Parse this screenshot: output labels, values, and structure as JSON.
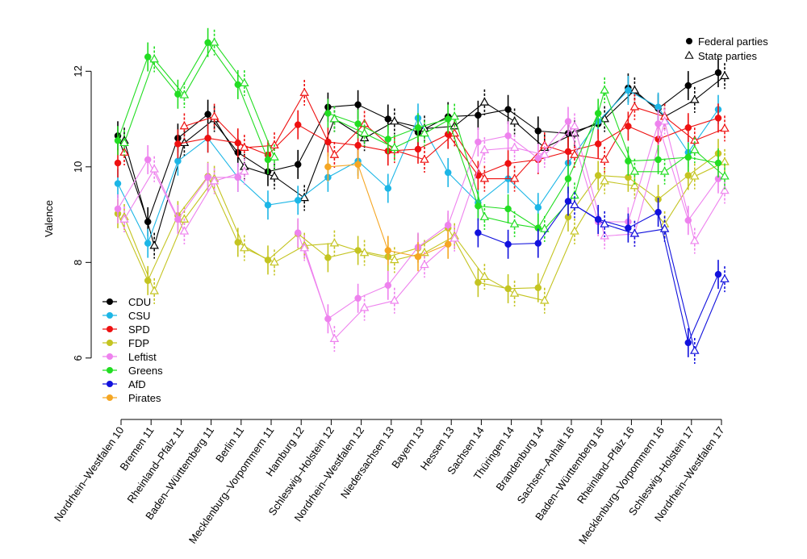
{
  "chart_data": {
    "type": "line",
    "ylabel": "Valence",
    "ylim": [
      4.9,
      12.9
    ],
    "yticks": [
      6,
      8,
      10,
      12
    ],
    "categories": [
      "Nordrhein–Westfalen 10",
      "Bremen 11",
      "Rheinland–Pfalz 11",
      "Baden–Württemberg 11",
      "Berlin 11",
      "Mecklenburg–Vorpommern 11",
      "Hamburg 12",
      "Schleswig–Holstein 12",
      "Nordrhein–Westfalen 12",
      "Niedersachsen 13",
      "Bayern 13",
      "Hessen 13",
      "Sachsen 14",
      "Thüringen 14",
      "Brandenburg 14",
      "Sachsen–Anhalt 16",
      "Baden–Württemberg 16",
      "Rheinland–Pfalz 16",
      "Mecklenburg–Vorpommern 16",
      "Schleswig–Holstein 17",
      "Nordrhein–Westfalen 17"
    ],
    "legend": {
      "marker_types": [
        {
          "label": "Federal parties",
          "marker": "filled-circle"
        },
        {
          "label": "State parties",
          "marker": "open-triangle"
        }
      ],
      "placement": "top-right"
    },
    "series": [
      {
        "name": "CDU",
        "color": "#000000",
        "federal": [
          10.65,
          8.85,
          10.6,
          11.1,
          10.3,
          9.9,
          10.05,
          11.25,
          11.3,
          11.0,
          10.72,
          11.05,
          11.08,
          11.2,
          10.75,
          10.7,
          10.9,
          11.65,
          11.22,
          11.7,
          11.97
        ],
        "state": [
          10.55,
          8.35,
          10.5,
          11.0,
          10.0,
          9.8,
          9.35,
          11.0,
          10.6,
          10.95,
          10.8,
          10.85,
          11.35,
          10.95,
          10.4,
          10.7,
          11.0,
          11.6,
          11.05,
          11.4,
          11.9
        ]
      },
      {
        "name": "CSU",
        "color": "#1cb6e6",
        "federal": [
          9.65,
          8.4,
          10.12,
          10.6,
          9.78,
          9.2,
          9.3,
          9.78,
          10.12,
          9.55,
          11.02,
          9.88,
          9.25,
          9.75,
          9.15,
          10.08,
          10.95,
          11.6,
          11.25,
          10.3,
          11.2
        ]
      },
      {
        "name": "SPD",
        "color": "#ee1111",
        "federal": [
          10.08,
          null,
          10.48,
          10.6,
          10.5,
          10.25,
          10.88,
          10.52,
          10.45,
          10.33,
          10.37,
          10.68,
          9.82,
          10.07,
          10.15,
          10.32,
          10.48,
          10.85,
          10.58,
          10.82,
          11.02
        ],
        "state": [
          10.3,
          null,
          10.85,
          11.05,
          10.4,
          10.45,
          11.55,
          10.25,
          10.9,
          10.35,
          10.15,
          10.7,
          9.75,
          9.75,
          10.45,
          10.25,
          10.15,
          11.25,
          11.05,
          10.55,
          10.8
        ]
      },
      {
        "name": "FDP",
        "color": "#c4c421",
        "federal": [
          9.02,
          7.62,
          8.98,
          9.8,
          8.42,
          8.05,
          8.6,
          8.1,
          8.25,
          8.12,
          8.3,
          8.72,
          7.58,
          7.45,
          7.47,
          8.95,
          9.82,
          9.78,
          9.32,
          9.82,
          10.28
        ],
        "state": [
          8.95,
          7.4,
          8.9,
          9.75,
          8.3,
          8.0,
          8.35,
          8.4,
          8.2,
          8.05,
          8.2,
          8.55,
          7.7,
          7.35,
          7.2,
          8.65,
          9.7,
          9.6,
          8.8,
          9.8,
          10.1
        ]
      },
      {
        "name": "Leftist",
        "color": "#ee82ee",
        "federal": [
          9.12,
          10.15,
          8.9,
          9.78,
          9.78,
          null,
          8.62,
          6.82,
          7.25,
          7.52,
          8.32,
          8.78,
          10.52,
          10.65,
          10.18,
          10.95,
          8.85,
          8.85,
          10.9,
          8.88,
          9.75
        ],
        "state": [
          8.9,
          9.95,
          8.65,
          9.7,
          9.9,
          null,
          8.3,
          6.4,
          7.05,
          7.2,
          7.95,
          8.5,
          10.35,
          10.4,
          10.25,
          10.85,
          8.55,
          8.6,
          10.95,
          8.45,
          9.5
        ]
      },
      {
        "name": "Greens",
        "color": "#22dd22",
        "federal": [
          10.55,
          12.3,
          11.52,
          12.6,
          11.72,
          10.15,
          null,
          11.12,
          10.9,
          10.58,
          10.82,
          11.0,
          9.18,
          9.12,
          8.72,
          9.75,
          11.12,
          10.12,
          10.15,
          10.2,
          10.08
        ],
        "state": [
          10.5,
          12.25,
          11.5,
          12.6,
          11.75,
          10.2,
          null,
          11.0,
          10.7,
          10.4,
          10.7,
          11.05,
          8.95,
          8.8,
          8.7,
          9.4,
          11.6,
          9.9,
          9.9,
          10.35,
          9.8
        ]
      },
      {
        "name": "AfD",
        "color": "#1111dd",
        "federal": [
          null,
          null,
          null,
          null,
          null,
          null,
          null,
          null,
          null,
          null,
          null,
          null,
          8.62,
          8.38,
          8.4,
          9.28,
          8.9,
          8.72,
          9.05,
          6.32,
          7.75
        ],
        "state": [
          null,
          null,
          null,
          null,
          null,
          null,
          null,
          null,
          null,
          null,
          null,
          null,
          null,
          null,
          null,
          9.2,
          8.8,
          8.6,
          8.7,
          6.15,
          7.65
        ]
      },
      {
        "name": "Pirates",
        "color": "#f5a623",
        "federal": [
          null,
          null,
          null,
          null,
          null,
          null,
          null,
          10.0,
          10.05,
          8.25,
          8.12,
          8.38,
          null,
          null,
          null,
          null,
          null,
          null,
          null,
          null,
          null
        ]
      }
    ]
  }
}
